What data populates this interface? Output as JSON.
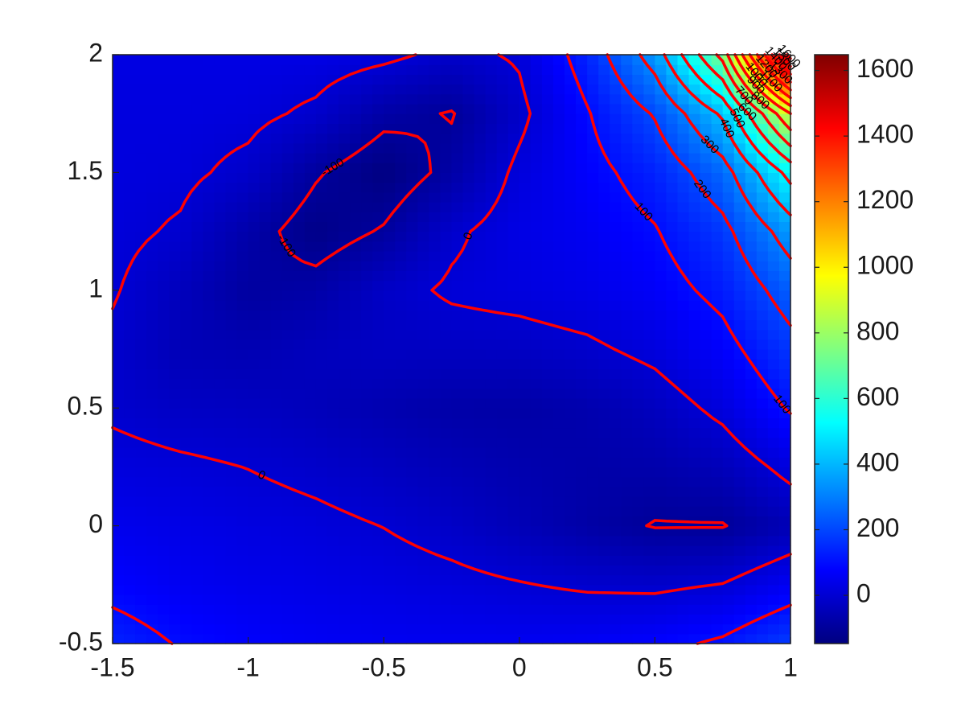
{
  "chart_data": {
    "type": "contour",
    "x": [
      -1.5,
      -1.25,
      -1,
      -0.75,
      -0.5,
      -0.25,
      0,
      0.25,
      0.5,
      0.75,
      1
    ],
    "y": [
      -0.5,
      -0.25,
      0,
      0.25,
      0.5,
      0.75,
      1,
      1.25,
      1.5,
      1.75,
      2
    ],
    "z": [
      [
        135,
        95,
        72,
        59,
        53,
        52,
        53,
        61,
        78,
        113,
        181
      ],
      [
        78,
        55,
        43,
        34,
        25,
        15,
        3,
        -9,
        -14,
        2,
        57
      ],
      [
        46,
        34,
        23,
        13,
        -1,
        -21,
        -49,
        -79,
        -103,
        -103,
        -53
      ],
      [
        18,
        9,
        -1,
        -15,
        -32,
        -49,
        -64,
        -73,
        -70,
        -45,
        22
      ],
      [
        -9,
        -26,
        -31,
        -44,
        -62,
        -76,
        -79,
        -66,
        -36,
        18,
        108
      ],
      [
        -11,
        -49,
        -57,
        -38,
        -29,
        -30,
        -27,
        -12,
        18,
        72,
        171
      ],
      [
        5,
        -39,
        -91,
        -77,
        -22,
        9,
        21,
        37,
        66,
        123,
        243
      ],
      [
        14,
        -7,
        -72,
        -133,
        -94,
        -12,
        31,
        55,
        95,
        174,
        348
      ],
      [
        18,
        13,
        -16,
        -93,
        -145,
        -80,
        16,
        74,
        135,
        258,
        535
      ],
      [
        21,
        21,
        16,
        -12,
        -80,
        -104,
        -18,
        94,
        208,
        417,
        900
      ],
      [
        27,
        27,
        30,
        31,
        16,
        -18,
        8,
        138,
        346,
        735,
        1648
      ]
    ],
    "colormap": "jet",
    "clim": [
      -147,
      1648
    ],
    "contour_levels": [
      -100,
      0,
      100,
      200,
      300,
      400,
      500,
      600,
      700,
      800,
      900,
      1000,
      1100,
      1200,
      1300,
      1400,
      1500,
      1600
    ],
    "contour_color": "#ff0000",
    "xlim": [
      -1.5,
      1
    ],
    "ylim": [
      -0.5,
      2
    ],
    "xticks": [
      -1.5,
      -1,
      -0.5,
      0,
      0.5,
      1
    ],
    "yticks": [
      -0.5,
      0,
      0.5,
      1,
      1.5,
      2
    ],
    "colorbar_ticks": [
      0,
      200,
      400,
      600,
      800,
      1000,
      1200,
      1400,
      1600
    ]
  }
}
